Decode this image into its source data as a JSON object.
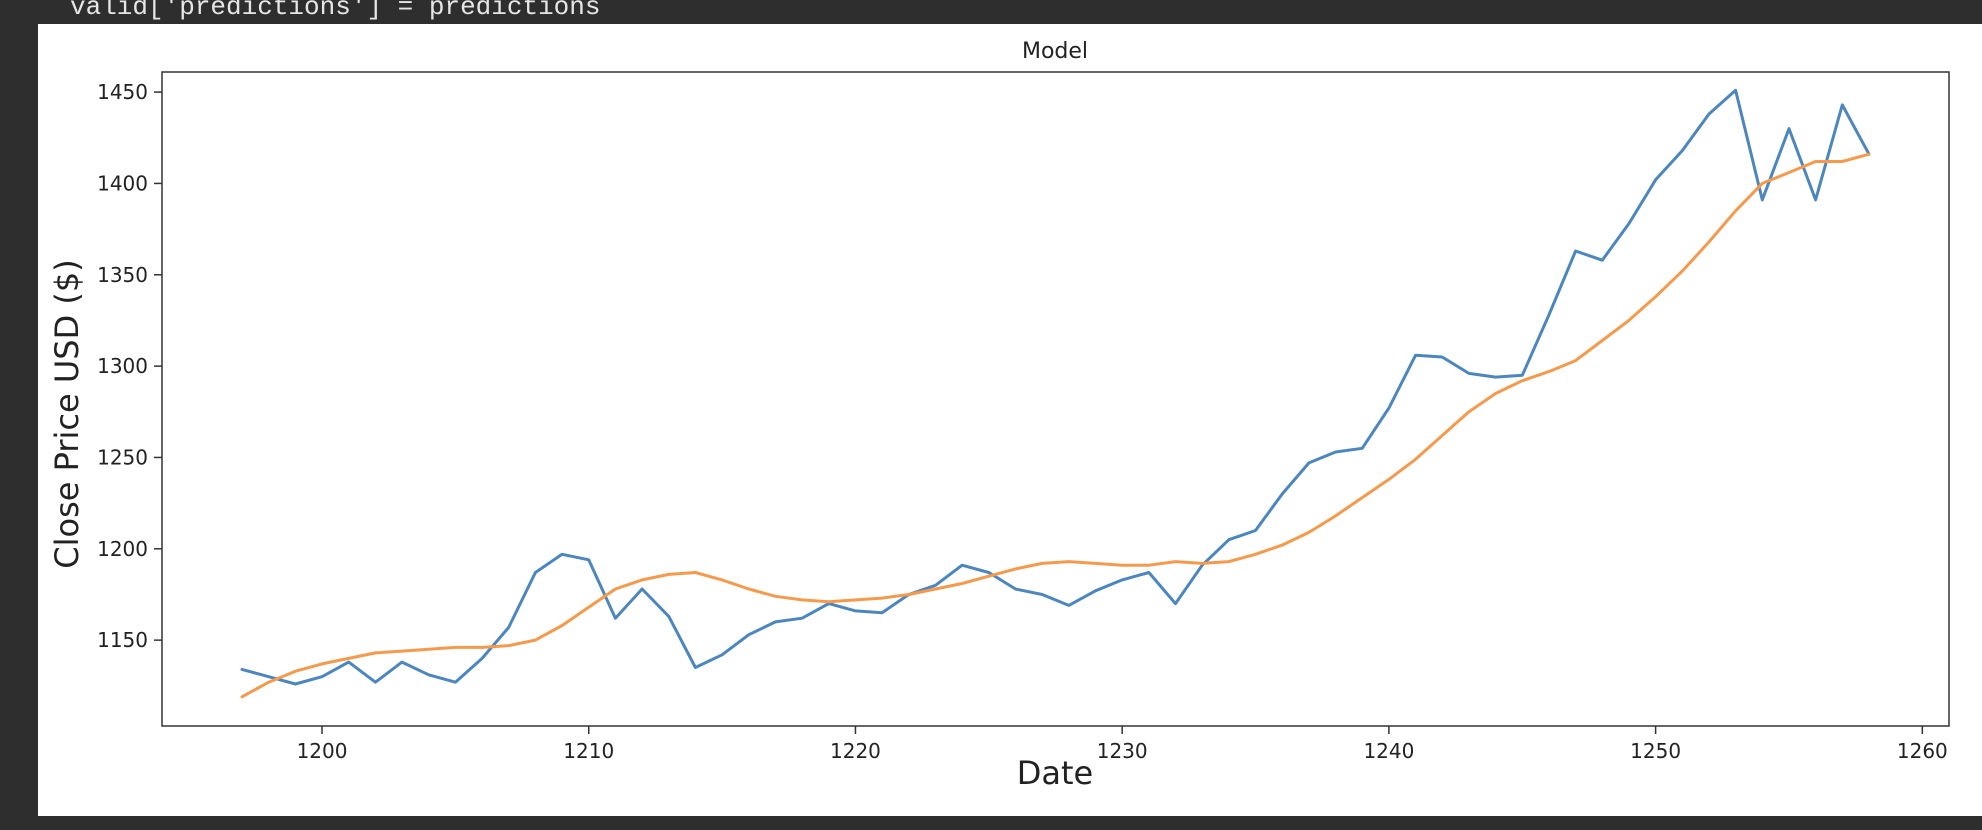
{
  "code": {
    "line": "valid['predictions'] = predictions"
  },
  "chart_data": {
    "type": "line",
    "title": "Model",
    "xlabel": "Date",
    "ylabel": "Close Price USD ($)",
    "xlim": [
      1194,
      1261
    ],
    "ylim": [
      1103,
      1461
    ],
    "xticks": [
      1200,
      1210,
      1220,
      1230,
      1240,
      1250,
      1260
    ],
    "yticks": [
      1150,
      1200,
      1250,
      1300,
      1350,
      1400,
      1450
    ],
    "legend": "none",
    "grid": false,
    "x": [
      1197,
      1198,
      1199,
      1200,
      1201,
      1202,
      1203,
      1204,
      1205,
      1206,
      1207,
      1208,
      1209,
      1210,
      1211,
      1212,
      1213,
      1214,
      1215,
      1216,
      1217,
      1218,
      1219,
      1220,
      1221,
      1222,
      1223,
      1224,
      1225,
      1226,
      1227,
      1228,
      1229,
      1230,
      1231,
      1232,
      1233,
      1234,
      1235,
      1236,
      1237,
      1238,
      1239,
      1240,
      1241,
      1242,
      1243,
      1244,
      1245,
      1246,
      1247,
      1248,
      1249,
      1250,
      1251,
      1252,
      1253,
      1254,
      1255,
      1256,
      1257,
      1258
    ],
    "series": [
      {
        "color": "#4c86bf",
        "values": [
          1134,
          1130,
          1126,
          1130,
          1138,
          1127,
          1138,
          1131,
          1127,
          1140,
          1157,
          1187,
          1197,
          1194,
          1162,
          1178,
          1163,
          1135,
          1142,
          1153,
          1160,
          1162,
          1170,
          1166,
          1165,
          1175,
          1180,
          1191,
          1187,
          1178,
          1175,
          1169,
          1177,
          1183,
          1187,
          1170,
          1191,
          1205,
          1210,
          1230,
          1247,
          1253,
          1255,
          1277,
          1306,
          1305,
          1296,
          1294,
          1295,
          1328,
          1363,
          1358,
          1378,
          1402,
          1418,
          1438,
          1451,
          1391,
          1430,
          1391,
          1443,
          1416
        ]
      },
      {
        "color": "#f59a4c",
        "values": [
          1119,
          1127,
          1133,
          1137,
          1140,
          1143,
          1144,
          1145,
          1146,
          1146,
          1147,
          1150,
          1158,
          1168,
          1178,
          1183,
          1186,
          1187,
          1183,
          1178,
          1174,
          1172,
          1171,
          1172,
          1173,
          1175,
          1178,
          1181,
          1185,
          1189,
          1192,
          1193,
          1192,
          1191,
          1191,
          1193,
          1192,
          1193,
          1197,
          1202,
          1209,
          1218,
          1228,
          1238,
          1249,
          1262,
          1275,
          1285,
          1292,
          1297,
          1303,
          1314,
          1325,
          1338,
          1352,
          1368,
          1385,
          1400,
          1406,
          1412,
          1412,
          1416
        ]
      }
    ]
  }
}
